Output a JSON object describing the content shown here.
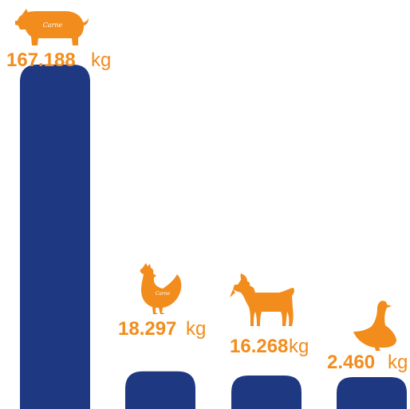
{
  "chart_data": {
    "type": "bar",
    "categories": [
      "Pig",
      "Chicken",
      "Goat",
      "Duck"
    ],
    "values": [
      167.188,
      18.297,
      16.268,
      2.46
    ],
    "value_labels": [
      "167.188",
      "18.297",
      "16.268",
      "2.460"
    ],
    "unit": "kg",
    "title": "",
    "xlabel": "",
    "ylabel": "",
    "ylim": [
      0,
      167.188
    ],
    "grid": false,
    "legend": "none",
    "icons": [
      "pig-icon",
      "chicken-icon",
      "goat-icon",
      "duck-icon"
    ],
    "icon_texts": [
      "Carne",
      "Carne"
    ],
    "colors": {
      "bar": "#1f3882",
      "label": "#f28c1c",
      "icon": "#f28c1c"
    }
  }
}
